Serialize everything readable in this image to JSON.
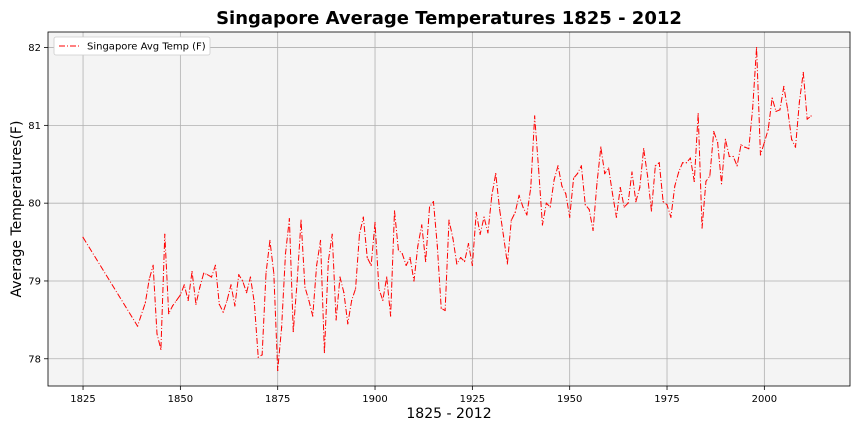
{
  "chart_data": {
    "type": "line",
    "title": "Singapore Average Temperatures 1825 - 2012",
    "xlabel": "1825 - 2012",
    "ylabel": "Average Temperatures(F)",
    "xlim": [
      1816,
      2022
    ],
    "ylim": [
      77.65,
      82.2
    ],
    "xticks": [
      1825,
      1850,
      1875,
      1900,
      1925,
      1950,
      1975,
      2000
    ],
    "yticks": [
      78,
      79,
      80,
      81,
      82
    ],
    "grid": true,
    "legend_position": "upper-left",
    "line_style": "dash-dot",
    "background_color": "#f4f4f4",
    "series": [
      {
        "name": "Singapore Avg Temp (F)",
        "color": "#ff0000",
        "points": [
          [
            1825,
            79.56
          ],
          [
            1839,
            78.42
          ],
          [
            1841,
            78.72
          ],
          [
            1842,
            79.02
          ],
          [
            1843,
            79.2
          ],
          [
            1844,
            78.32
          ],
          [
            1845,
            78.12
          ],
          [
            1846,
            79.6
          ],
          [
            1847,
            78.58
          ],
          [
            1848,
            78.68
          ],
          [
            1849,
            78.75
          ],
          [
            1850,
            78.82
          ],
          [
            1851,
            78.95
          ],
          [
            1852,
            78.75
          ],
          [
            1853,
            79.12
          ],
          [
            1854,
            78.7
          ],
          [
            1855,
            78.92
          ],
          [
            1856,
            79.1
          ],
          [
            1857,
            79.08
          ],
          [
            1858,
            79.05
          ],
          [
            1859,
            79.2
          ],
          [
            1860,
            78.7
          ],
          [
            1861,
            78.6
          ],
          [
            1862,
            78.75
          ],
          [
            1863,
            78.95
          ],
          [
            1864,
            78.68
          ],
          [
            1865,
            79.08
          ],
          [
            1866,
            79.0
          ],
          [
            1867,
            78.85
          ],
          [
            1868,
            79.05
          ],
          [
            1869,
            78.72
          ],
          [
            1870,
            78.02
          ],
          [
            1871,
            78.05
          ],
          [
            1872,
            79.1
          ],
          [
            1873,
            79.52
          ],
          [
            1874,
            79.1
          ],
          [
            1875,
            77.85
          ],
          [
            1876,
            78.4
          ],
          [
            1877,
            79.35
          ],
          [
            1878,
            79.8
          ],
          [
            1879,
            78.35
          ],
          [
            1880,
            79.0
          ],
          [
            1881,
            79.78
          ],
          [
            1882,
            78.92
          ],
          [
            1883,
            78.75
          ],
          [
            1884,
            78.55
          ],
          [
            1885,
            79.2
          ],
          [
            1886,
            79.52
          ],
          [
            1887,
            78.08
          ],
          [
            1888,
            79.25
          ],
          [
            1889,
            79.6
          ],
          [
            1890,
            78.5
          ],
          [
            1891,
            79.05
          ],
          [
            1892,
            78.85
          ],
          [
            1893,
            78.45
          ],
          [
            1894,
            78.75
          ],
          [
            1895,
            78.9
          ],
          [
            1896,
            79.6
          ],
          [
            1897,
            79.82
          ],
          [
            1898,
            79.3
          ],
          [
            1899,
            79.2
          ],
          [
            1900,
            79.75
          ],
          [
            1901,
            78.9
          ],
          [
            1902,
            78.75
          ],
          [
            1903,
            79.05
          ],
          [
            1904,
            78.55
          ],
          [
            1905,
            79.9
          ],
          [
            1906,
            79.4
          ],
          [
            1907,
            79.35
          ],
          [
            1908,
            79.2
          ],
          [
            1909,
            79.3
          ],
          [
            1910,
            79.0
          ],
          [
            1911,
            79.45
          ],
          [
            1912,
            79.72
          ],
          [
            1913,
            79.25
          ],
          [
            1914,
            79.95
          ],
          [
            1915,
            80.02
          ],
          [
            1916,
            79.45
          ],
          [
            1917,
            78.65
          ],
          [
            1918,
            78.62
          ],
          [
            1919,
            79.78
          ],
          [
            1920,
            79.55
          ],
          [
            1921,
            79.22
          ],
          [
            1922,
            79.3
          ],
          [
            1923,
            79.25
          ],
          [
            1924,
            79.48
          ],
          [
            1925,
            79.2
          ],
          [
            1926,
            79.88
          ],
          [
            1927,
            79.6
          ],
          [
            1928,
            79.82
          ],
          [
            1929,
            79.62
          ],
          [
            1930,
            80.1
          ],
          [
            1931,
            80.38
          ],
          [
            1932,
            79.92
          ],
          [
            1933,
            79.58
          ],
          [
            1934,
            79.22
          ],
          [
            1935,
            79.78
          ],
          [
            1936,
            79.88
          ],
          [
            1937,
            80.1
          ],
          [
            1938,
            79.95
          ],
          [
            1939,
            79.85
          ],
          [
            1940,
            80.2
          ],
          [
            1941,
            81.12
          ],
          [
            1942,
            80.45
          ],
          [
            1943,
            79.72
          ],
          [
            1944,
            80.0
          ],
          [
            1945,
            79.95
          ],
          [
            1946,
            80.3
          ],
          [
            1947,
            80.48
          ],
          [
            1948,
            80.22
          ],
          [
            1949,
            80.12
          ],
          [
            1950,
            79.82
          ],
          [
            1951,
            80.32
          ],
          [
            1952,
            80.38
          ],
          [
            1953,
            80.48
          ],
          [
            1954,
            79.98
          ],
          [
            1955,
            79.92
          ],
          [
            1956,
            79.65
          ],
          [
            1957,
            80.25
          ],
          [
            1958,
            80.72
          ],
          [
            1959,
            80.38
          ],
          [
            1960,
            80.45
          ],
          [
            1961,
            80.12
          ],
          [
            1962,
            79.82
          ],
          [
            1963,
            80.2
          ],
          [
            1964,
            79.95
          ],
          [
            1965,
            80.0
          ],
          [
            1966,
            80.4
          ],
          [
            1967,
            80.02
          ],
          [
            1968,
            80.2
          ],
          [
            1969,
            80.7
          ],
          [
            1970,
            80.35
          ],
          [
            1971,
            79.9
          ],
          [
            1972,
            80.48
          ],
          [
            1973,
            80.52
          ],
          [
            1974,
            80.02
          ],
          [
            1975,
            79.98
          ],
          [
            1976,
            79.82
          ],
          [
            1977,
            80.22
          ],
          [
            1978,
            80.4
          ],
          [
            1979,
            80.52
          ],
          [
            1980,
            80.52
          ],
          [
            1981,
            80.58
          ],
          [
            1982,
            80.28
          ],
          [
            1983,
            81.15
          ],
          [
            1984,
            79.68
          ],
          [
            1985,
            80.28
          ],
          [
            1986,
            80.35
          ],
          [
            1987,
            80.92
          ],
          [
            1988,
            80.78
          ],
          [
            1989,
            80.25
          ],
          [
            1990,
            80.82
          ],
          [
            1991,
            80.6
          ],
          [
            1992,
            80.6
          ],
          [
            1993,
            80.48
          ],
          [
            1994,
            80.75
          ],
          [
            1995,
            80.72
          ],
          [
            1996,
            80.7
          ],
          [
            1997,
            81.22
          ],
          [
            1998,
            82.0
          ],
          [
            1999,
            80.62
          ],
          [
            2000,
            80.78
          ],
          [
            2001,
            80.95
          ],
          [
            2002,
            81.35
          ],
          [
            2003,
            81.18
          ],
          [
            2004,
            81.2
          ],
          [
            2005,
            81.5
          ],
          [
            2006,
            81.2
          ],
          [
            2007,
            80.82
          ],
          [
            2008,
            80.72
          ],
          [
            2009,
            81.3
          ],
          [
            2010,
            81.68
          ],
          [
            2011,
            81.08
          ],
          [
            2012,
            81.12
          ]
        ]
      }
    ]
  }
}
